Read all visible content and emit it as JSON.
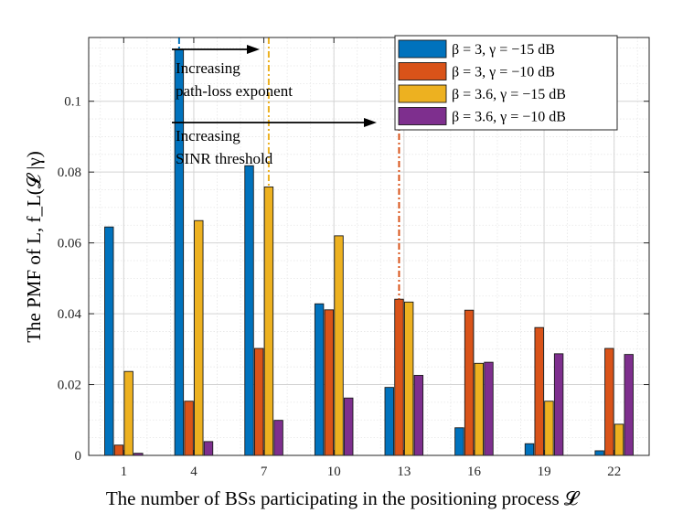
{
  "chart_data": {
    "type": "bar",
    "xlabel": "The number of BSs participating in the positioning process 𝓛",
    "ylabel": "The PMF of L, f_L(𝓛 |γ)",
    "ylim": [
      0,
      0.118
    ],
    "grid": true,
    "legend_position": "top-right",
    "x_ticks": [
      "1",
      "4",
      "7",
      "10",
      "13",
      "16",
      "19",
      "22"
    ],
    "y_ticks": [
      0,
      0.02,
      0.04,
      0.06,
      0.08,
      0.1
    ],
    "y_tick_labels": [
      "0",
      "0.02",
      "0.04",
      "0.06",
      "0.08",
      "0.1"
    ],
    "categories": [
      "1",
      "4",
      "7",
      "10",
      "13",
      "16",
      "19",
      "22"
    ],
    "series": [
      {
        "name": "β = 3, γ = −15 dB",
        "color": "#0072BD",
        "values": [
          0.0645,
          0.1145,
          0.0818,
          0.0428,
          0.0192,
          0.0078,
          0.0033,
          0.0013
        ],
        "peak_category": "4"
      },
      {
        "name": "β = 3, γ = −10 dB",
        "color": "#D95319",
        "values": [
          0.0029,
          0.0153,
          0.0302,
          0.0411,
          0.0441,
          0.041,
          0.0361,
          0.0302
        ],
        "peak_category": "13"
      },
      {
        "name": "β = 3.6, γ = −15 dB",
        "color": "#EDB120",
        "values": [
          0.0237,
          0.0663,
          0.0758,
          0.062,
          0.0433,
          0.026,
          0.0153,
          0.0088
        ],
        "peak_category": "7"
      },
      {
        "name": "β = 3.6, γ = −10 dB",
        "color": "#7E2F8E",
        "values": [
          0.0006,
          0.0039,
          0.0099,
          0.0162,
          0.0226,
          0.0263,
          0.0287,
          0.0285
        ]
      }
    ],
    "annotations": [
      {
        "lines": [
          "Increasing",
          "path-loss exponent"
        ],
        "arrow_from": "4",
        "arrow_to": "7"
      },
      {
        "lines": [
          "Increasing",
          "SINR threshold"
        ],
        "arrow_from": "4",
        "arrow_to": "13"
      }
    ]
  }
}
